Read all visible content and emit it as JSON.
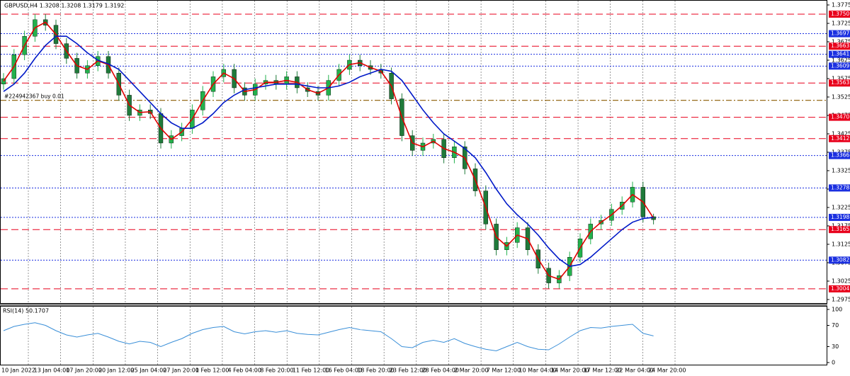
{
  "chart_data": {
    "type": "candlestick",
    "title": "GBPUSD,H4  1.3208 1.3208 1.3179 1.3192",
    "up_color": "#22b14c",
    "down_color": "#1f7a3a",
    "categories": [
      "10 Jan 2022",
      "13 Jan 04:00",
      "17 Jan 20:00",
      "20 Jan 12:00",
      "25 Jan 04:00",
      "27 Jan 20:00",
      "1 Feb 12:00",
      "4 Feb 04:00",
      "8 Feb 20:00",
      "11 Feb 12:00",
      "16 Feb 04:00",
      "18 Feb 20:00",
      "23 Feb 12:00",
      "28 Feb 04:00",
      "2 Mar 20:00",
      "7 Mar 12:00",
      "10 Mar 04:00",
      "14 Mar 20:00",
      "17 Mar 12:00",
      "22 Mar 04:00",
      "24 Mar 20:00"
    ],
    "open": [
      1.356,
      1.3575,
      1.364,
      1.369,
      1.3735,
      1.372,
      1.367,
      1.363,
      1.359,
      1.361,
      1.3635,
      1.359,
      1.353,
      1.3475,
      1.349,
      1.348,
      1.34,
      1.342,
      1.344,
      1.349,
      1.354,
      1.358,
      1.36,
      1.355,
      1.353,
      1.356,
      1.357,
      1.356,
      1.358,
      1.355,
      1.354,
      1.353,
      1.357,
      1.36,
      1.3625,
      1.361,
      1.36,
      1.359,
      1.352,
      1.342,
      1.338,
      1.34,
      1.341,
      1.336,
      1.339,
      1.333,
      1.327,
      1.318,
      1.311,
      1.313,
      1.317,
      1.311,
      1.306,
      1.302,
      1.304,
      1.309,
      1.314,
      1.318,
      1.319,
      1.322,
      1.324,
      1.328,
      1.32
    ],
    "high": [
      1.359,
      1.3655,
      1.3705,
      1.375,
      1.375,
      1.3735,
      1.3685,
      1.3645,
      1.3625,
      1.365,
      1.365,
      1.3605,
      1.3545,
      1.3505,
      1.3505,
      1.3495,
      1.3435,
      1.3455,
      1.3505,
      1.3555,
      1.3595,
      1.3615,
      1.3615,
      1.3565,
      1.3575,
      1.3585,
      1.3585,
      1.3595,
      1.3595,
      1.3565,
      1.3555,
      1.3585,
      1.3615,
      1.364,
      1.364,
      1.3625,
      1.3615,
      1.3605,
      1.3535,
      1.3435,
      1.3415,
      1.3425,
      1.3425,
      1.3405,
      1.3405,
      1.3345,
      1.3285,
      1.3195,
      1.3145,
      1.3185,
      1.3185,
      1.3125,
      1.3075,
      1.3055,
      1.3105,
      1.3155,
      1.3195,
      1.3205,
      1.3235,
      1.3255,
      1.3295,
      1.3295,
      1.3208
    ],
    "low": [
      1.3545,
      1.356,
      1.3625,
      1.3675,
      1.3705,
      1.3655,
      1.3615,
      1.3575,
      1.3575,
      1.3595,
      1.3575,
      1.3515,
      1.346,
      1.346,
      1.3465,
      1.3385,
      1.3385,
      1.3405,
      1.3425,
      1.3475,
      1.3525,
      1.3565,
      1.3535,
      1.3515,
      1.3515,
      1.3545,
      1.3545,
      1.3545,
      1.3535,
      1.3525,
      1.3515,
      1.3515,
      1.3555,
      1.3585,
      1.3595,
      1.3585,
      1.3575,
      1.3505,
      1.3405,
      1.3365,
      1.3365,
      1.3385,
      1.3345,
      1.3345,
      1.3315,
      1.3255,
      1.3165,
      1.3095,
      1.3095,
      1.3115,
      1.3095,
      1.3045,
      1.3005,
      1.3005,
      1.3025,
      1.3075,
      1.3125,
      1.3165,
      1.3175,
      1.3205,
      1.3225,
      1.3185,
      1.3179
    ],
    "close": [
      1.3575,
      1.364,
      1.369,
      1.3735,
      1.372,
      1.367,
      1.363,
      1.359,
      1.361,
      1.3635,
      1.359,
      1.353,
      1.3475,
      1.349,
      1.348,
      1.34,
      1.342,
      1.344,
      1.349,
      1.354,
      1.358,
      1.36,
      1.355,
      1.353,
      1.356,
      1.357,
      1.356,
      1.358,
      1.355,
      1.354,
      1.353,
      1.357,
      1.36,
      1.3625,
      1.361,
      1.36,
      1.359,
      1.352,
      1.342,
      1.338,
      1.34,
      1.341,
      1.336,
      1.339,
      1.333,
      1.327,
      1.318,
      1.311,
      1.313,
      1.317,
      1.311,
      1.306,
      1.302,
      1.304,
      1.309,
      1.314,
      1.318,
      1.319,
      1.322,
      1.324,
      1.328,
      1.32,
      1.3192
    ],
    "ma": [
      {
        "color": "#e00000",
        "values": [
          1.3568,
          1.3608,
          1.3665,
          1.3713,
          1.3728,
          1.3695,
          1.365,
          1.361,
          1.36,
          1.3623,
          1.3613,
          1.356,
          1.3503,
          1.3483,
          1.3485,
          1.344,
          1.341,
          1.343,
          1.3465,
          1.3515,
          1.356,
          1.359,
          1.3575,
          1.354,
          1.3545,
          1.3565,
          1.3565,
          1.357,
          1.3565,
          1.3545,
          1.3535,
          1.355,
          1.3585,
          1.3613,
          1.3618,
          1.3605,
          1.3595,
          1.3555,
          1.347,
          1.34,
          1.339,
          1.3405,
          1.3385,
          1.3375,
          1.336,
          1.33,
          1.3225,
          1.3145,
          1.312,
          1.315,
          1.314,
          1.3085,
          1.304,
          1.303,
          1.3065,
          1.3115,
          1.316,
          1.3185,
          1.3205,
          1.323,
          1.326,
          1.324,
          1.3196
        ]
      },
      {
        "color": "#0019c8",
        "values": [
          1.354,
          1.356,
          1.359,
          1.363,
          1.3665,
          1.369,
          1.369,
          1.367,
          1.3645,
          1.3625,
          1.3615,
          1.36,
          1.357,
          1.354,
          1.351,
          1.348,
          1.3455,
          1.344,
          1.344,
          1.3455,
          1.348,
          1.351,
          1.353,
          1.3545,
          1.355,
          1.3555,
          1.356,
          1.356,
          1.356,
          1.3555,
          1.355,
          1.355,
          1.3555,
          1.3565,
          1.358,
          1.359,
          1.36,
          1.3595,
          1.357,
          1.353,
          1.349,
          1.3455,
          1.3425,
          1.3405,
          1.3385,
          1.336,
          1.332,
          1.3275,
          1.3235,
          1.3205,
          1.318,
          1.315,
          1.3115,
          1.3085,
          1.3065,
          1.307,
          1.309,
          1.3115,
          1.314,
          1.3165,
          1.3185,
          1.3195,
          1.3198
        ]
      }
    ],
    "ylim": [
      1.2975,
      1.3775
    ],
    "yticks": [
      1.3775,
      1.3725,
      1.3675,
      1.3625,
      1.3575,
      1.3525,
      1.3475,
      1.3425,
      1.3375,
      1.3325,
      1.3275,
      1.3225,
      1.3175,
      1.3125,
      1.3075,
      1.3025,
      1.2975
    ],
    "grid": true,
    "levels": [
      {
        "price": {
          "value": 1.375,
          "label": "1.3750"
        },
        "color": "#e8001c",
        "style": "dashed"
      },
      {
        "price": 1.3697,
        "color": "#1a2fe0",
        "style": "dotted"
      },
      {
        "price": 1.3663,
        "color": "#e8001c",
        "style": "dashed"
      },
      {
        "price": 1.3641,
        "color": "#1a2fe0",
        "style": "dotted"
      },
      {
        "price": 1.3609,
        "color": "#1a2fe0",
        "style": "dotted"
      },
      {
        "price": 1.3563,
        "color": "#e8001c",
        "style": "dashed"
      },
      {
        "price": {
          "value": 1.347,
          "label": "1.3470"
        },
        "color": "#e8001c",
        "style": "dashed"
      },
      {
        "price": 1.3412,
        "color": "#e8001c",
        "style": "dashed"
      },
      {
        "price": 1.3366,
        "color": "#1a2fe0",
        "style": "dotted"
      },
      {
        "price": 1.3278,
        "color": "#1a2fe0",
        "style": "dotted"
      },
      {
        "price": 1.3198,
        "color": "#1a2fe0",
        "style": "dotted"
      },
      {
        "price": 1.3165,
        "color": "#e8001c",
        "style": "dashed"
      },
      {
        "price": 1.3082,
        "color": "#1a2fe0",
        "style": "dotted"
      },
      {
        "price": 1.3004,
        "color": "#e8001c",
        "style": "dashed"
      }
    ],
    "order": {
      "label": "#224942367 buy 0.01",
      "price": 1.3516,
      "color": "#8b5a00"
    },
    "rsi": {
      "label": "RSI(14) 50.1707",
      "color": "#3a8fd8",
      "ylim": [
        0,
        100
      ],
      "yticks": [
        100,
        70,
        30,
        0
      ],
      "values": [
        60,
        68,
        72,
        75,
        70,
        60,
        52,
        48,
        52,
        55,
        48,
        40,
        35,
        40,
        38,
        30,
        38,
        45,
        55,
        62,
        66,
        68,
        58,
        54,
        58,
        60,
        57,
        60,
        55,
        53,
        52,
        57,
        62,
        66,
        62,
        60,
        58,
        45,
        30,
        28,
        38,
        42,
        38,
        45,
        36,
        30,
        25,
        22,
        30,
        38,
        30,
        25,
        24,
        35,
        48,
        60,
        66,
        65,
        68,
        70,
        72,
        55,
        50.1707
      ]
    }
  }
}
